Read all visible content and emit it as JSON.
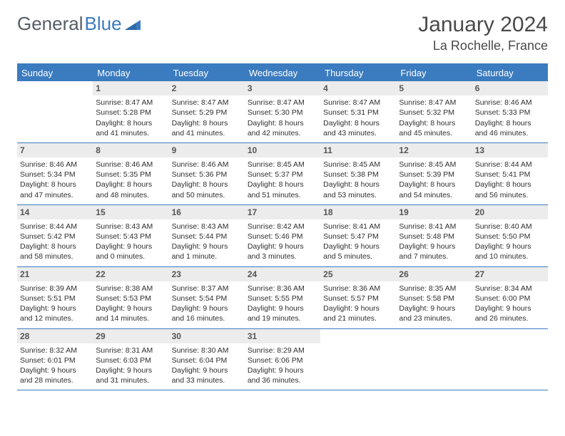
{
  "logo": {
    "part1": "General",
    "part2": "Blue"
  },
  "title": "January 2024",
  "location": "La Rochelle, France",
  "colors": {
    "accent": "#3b7bbf",
    "header_bg": "#3b7bbf",
    "header_text": "#ffffff",
    "daynum_bg": "#ececec",
    "text": "#333333",
    "border": "#3b7bbf"
  },
  "day_names": [
    "Sunday",
    "Monday",
    "Tuesday",
    "Wednesday",
    "Thursday",
    "Friday",
    "Saturday"
  ],
  "weeks": [
    [
      {
        "num": "",
        "empty": true
      },
      {
        "num": "1",
        "sunrise": "Sunrise: 8:47 AM",
        "sunset": "Sunset: 5:28 PM",
        "daylight": "Daylight: 8 hours and 41 minutes."
      },
      {
        "num": "2",
        "sunrise": "Sunrise: 8:47 AM",
        "sunset": "Sunset: 5:29 PM",
        "daylight": "Daylight: 8 hours and 41 minutes."
      },
      {
        "num": "3",
        "sunrise": "Sunrise: 8:47 AM",
        "sunset": "Sunset: 5:30 PM",
        "daylight": "Daylight: 8 hours and 42 minutes."
      },
      {
        "num": "4",
        "sunrise": "Sunrise: 8:47 AM",
        "sunset": "Sunset: 5:31 PM",
        "daylight": "Daylight: 8 hours and 43 minutes."
      },
      {
        "num": "5",
        "sunrise": "Sunrise: 8:47 AM",
        "sunset": "Sunset: 5:32 PM",
        "daylight": "Daylight: 8 hours and 45 minutes."
      },
      {
        "num": "6",
        "sunrise": "Sunrise: 8:46 AM",
        "sunset": "Sunset: 5:33 PM",
        "daylight": "Daylight: 8 hours and 46 minutes."
      }
    ],
    [
      {
        "num": "7",
        "sunrise": "Sunrise: 8:46 AM",
        "sunset": "Sunset: 5:34 PM",
        "daylight": "Daylight: 8 hours and 47 minutes."
      },
      {
        "num": "8",
        "sunrise": "Sunrise: 8:46 AM",
        "sunset": "Sunset: 5:35 PM",
        "daylight": "Daylight: 8 hours and 48 minutes."
      },
      {
        "num": "9",
        "sunrise": "Sunrise: 8:46 AM",
        "sunset": "Sunset: 5:36 PM",
        "daylight": "Daylight: 8 hours and 50 minutes."
      },
      {
        "num": "10",
        "sunrise": "Sunrise: 8:45 AM",
        "sunset": "Sunset: 5:37 PM",
        "daylight": "Daylight: 8 hours and 51 minutes."
      },
      {
        "num": "11",
        "sunrise": "Sunrise: 8:45 AM",
        "sunset": "Sunset: 5:38 PM",
        "daylight": "Daylight: 8 hours and 53 minutes."
      },
      {
        "num": "12",
        "sunrise": "Sunrise: 8:45 AM",
        "sunset": "Sunset: 5:39 PM",
        "daylight": "Daylight: 8 hours and 54 minutes."
      },
      {
        "num": "13",
        "sunrise": "Sunrise: 8:44 AM",
        "sunset": "Sunset: 5:41 PM",
        "daylight": "Daylight: 8 hours and 56 minutes."
      }
    ],
    [
      {
        "num": "14",
        "sunrise": "Sunrise: 8:44 AM",
        "sunset": "Sunset: 5:42 PM",
        "daylight": "Daylight: 8 hours and 58 minutes."
      },
      {
        "num": "15",
        "sunrise": "Sunrise: 8:43 AM",
        "sunset": "Sunset: 5:43 PM",
        "daylight": "Daylight: 9 hours and 0 minutes."
      },
      {
        "num": "16",
        "sunrise": "Sunrise: 8:43 AM",
        "sunset": "Sunset: 5:44 PM",
        "daylight": "Daylight: 9 hours and 1 minute."
      },
      {
        "num": "17",
        "sunrise": "Sunrise: 8:42 AM",
        "sunset": "Sunset: 5:46 PM",
        "daylight": "Daylight: 9 hours and 3 minutes."
      },
      {
        "num": "18",
        "sunrise": "Sunrise: 8:41 AM",
        "sunset": "Sunset: 5:47 PM",
        "daylight": "Daylight: 9 hours and 5 minutes."
      },
      {
        "num": "19",
        "sunrise": "Sunrise: 8:41 AM",
        "sunset": "Sunset: 5:48 PM",
        "daylight": "Daylight: 9 hours and 7 minutes."
      },
      {
        "num": "20",
        "sunrise": "Sunrise: 8:40 AM",
        "sunset": "Sunset: 5:50 PM",
        "daylight": "Daylight: 9 hours and 10 minutes."
      }
    ],
    [
      {
        "num": "21",
        "sunrise": "Sunrise: 8:39 AM",
        "sunset": "Sunset: 5:51 PM",
        "daylight": "Daylight: 9 hours and 12 minutes."
      },
      {
        "num": "22",
        "sunrise": "Sunrise: 8:38 AM",
        "sunset": "Sunset: 5:53 PM",
        "daylight": "Daylight: 9 hours and 14 minutes."
      },
      {
        "num": "23",
        "sunrise": "Sunrise: 8:37 AM",
        "sunset": "Sunset: 5:54 PM",
        "daylight": "Daylight: 9 hours and 16 minutes."
      },
      {
        "num": "24",
        "sunrise": "Sunrise: 8:36 AM",
        "sunset": "Sunset: 5:55 PM",
        "daylight": "Daylight: 9 hours and 19 minutes."
      },
      {
        "num": "25",
        "sunrise": "Sunrise: 8:36 AM",
        "sunset": "Sunset: 5:57 PM",
        "daylight": "Daylight: 9 hours and 21 minutes."
      },
      {
        "num": "26",
        "sunrise": "Sunrise: 8:35 AM",
        "sunset": "Sunset: 5:58 PM",
        "daylight": "Daylight: 9 hours and 23 minutes."
      },
      {
        "num": "27",
        "sunrise": "Sunrise: 8:34 AM",
        "sunset": "Sunset: 6:00 PM",
        "daylight": "Daylight: 9 hours and 26 minutes."
      }
    ],
    [
      {
        "num": "28",
        "sunrise": "Sunrise: 8:32 AM",
        "sunset": "Sunset: 6:01 PM",
        "daylight": "Daylight: 9 hours and 28 minutes."
      },
      {
        "num": "29",
        "sunrise": "Sunrise: 8:31 AM",
        "sunset": "Sunset: 6:03 PM",
        "daylight": "Daylight: 9 hours and 31 minutes."
      },
      {
        "num": "30",
        "sunrise": "Sunrise: 8:30 AM",
        "sunset": "Sunset: 6:04 PM",
        "daylight": "Daylight: 9 hours and 33 minutes."
      },
      {
        "num": "31",
        "sunrise": "Sunrise: 8:29 AM",
        "sunset": "Sunset: 6:06 PM",
        "daylight": "Daylight: 9 hours and 36 minutes."
      },
      {
        "num": "",
        "empty": true
      },
      {
        "num": "",
        "empty": true
      },
      {
        "num": "",
        "empty": true
      }
    ]
  ]
}
